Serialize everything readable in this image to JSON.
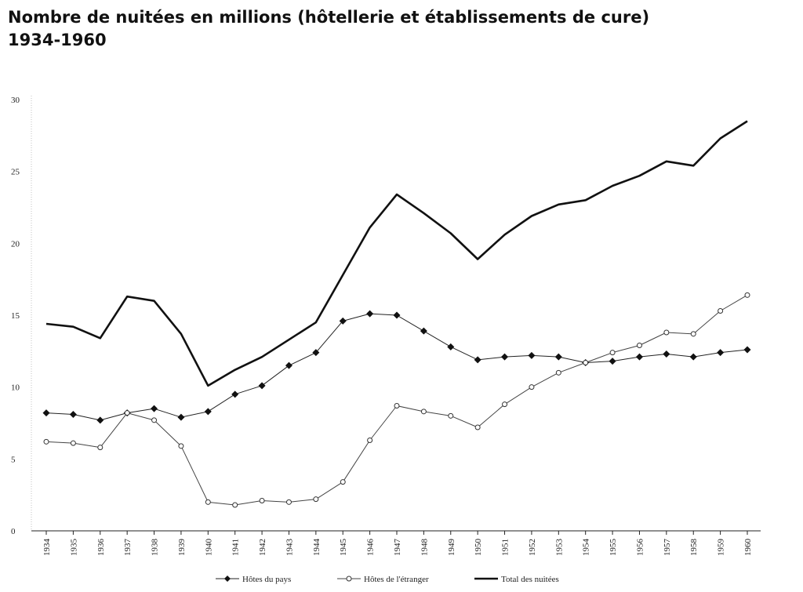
{
  "chart_data": {
    "type": "line",
    "title": "Nombre de nuitées en millions (hôtellerie et établissements de cure)",
    "subtitle": "1934-1960",
    "xlabel": "",
    "ylabel": "",
    "ylim": [
      0,
      30
    ],
    "yticks": [
      0,
      5,
      10,
      15,
      20,
      25,
      30
    ],
    "x": [
      1934,
      1935,
      1936,
      1937,
      1938,
      1939,
      1940,
      1941,
      1942,
      1943,
      1944,
      1945,
      1946,
      1947,
      1948,
      1949,
      1950,
      1951,
      1952,
      1953,
      1954,
      1955,
      1956,
      1957,
      1958,
      1959,
      1960
    ],
    "grid": false,
    "legend_position": "bottom",
    "series": [
      {
        "name": "Hôtes du pays",
        "marker": "diamond-filled",
        "values": [
          8.2,
          8.1,
          7.7,
          8.2,
          8.5,
          7.9,
          8.3,
          9.5,
          10.1,
          11.5,
          12.4,
          14.6,
          15.1,
          15.0,
          13.9,
          12.8,
          11.9,
          12.1,
          12.2,
          12.1,
          11.7,
          11.8,
          12.1,
          12.3,
          12.1,
          12.4,
          12.6
        ]
      },
      {
        "name": "Hôtes de l'étranger",
        "marker": "circle-open",
        "values": [
          6.2,
          6.1,
          5.8,
          8.2,
          7.7,
          5.9,
          2.0,
          1.8,
          2.1,
          2.0,
          2.2,
          3.4,
          6.3,
          8.7,
          8.3,
          8.0,
          7.2,
          8.8,
          10.0,
          11.0,
          11.7,
          12.4,
          12.9,
          13.8,
          13.7,
          15.3,
          16.4
        ]
      },
      {
        "name": "Total des nuitées",
        "marker": "none",
        "values": [
          14.4,
          14.2,
          13.4,
          16.3,
          16.0,
          13.7,
          10.1,
          11.2,
          12.1,
          13.3,
          14.5,
          17.8,
          21.1,
          23.4,
          22.1,
          20.7,
          18.9,
          20.6,
          21.9,
          22.7,
          23.0,
          24.0,
          24.7,
          25.7,
          25.4,
          27.3,
          28.5
        ]
      }
    ]
  }
}
